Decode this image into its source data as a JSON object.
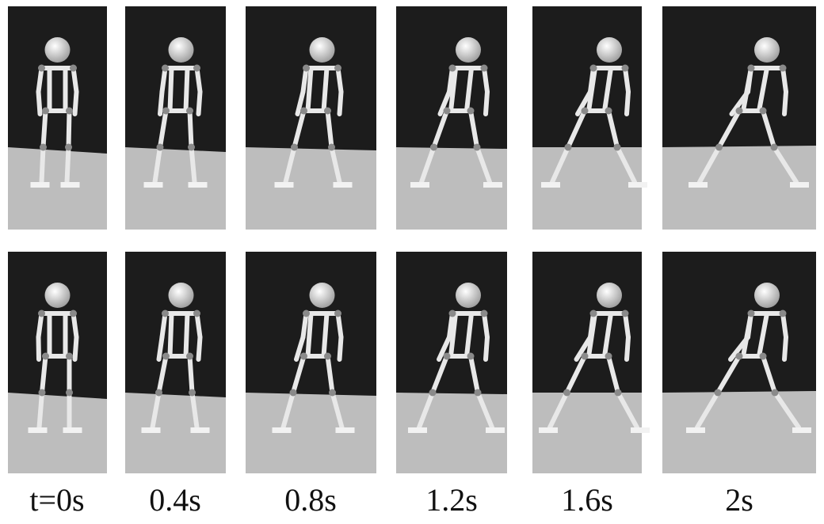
{
  "labels": [
    "t=0s",
    "0.4s",
    "0.8s",
    "1.2s",
    "1.6s",
    "2s"
  ]
}
